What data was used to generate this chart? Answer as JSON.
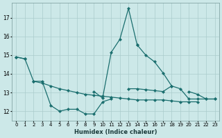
{
  "xlabel": "Humidex (Indice chaleur)",
  "bg_color": "#cce8e8",
  "line_color": "#1a6e6e",
  "grid_color": "#aacccc",
  "ylim": [
    11.5,
    17.8
  ],
  "yticks": [
    12,
    13,
    14,
    15,
    16,
    17
  ],
  "xlim": [
    -0.5,
    23.5
  ],
  "series": [
    [
      14.9,
      14.8,
      null,
      null,
      null,
      null,
      null,
      null,
      null,
      null,
      null,
      null,
      null,
      null,
      null,
      null,
      null,
      null,
      null,
      null,
      null,
      null,
      null,
      null
    ],
    [
      null,
      null,
      13.6,
      13.6,
      12.3,
      12.0,
      12.1,
      12.1,
      11.85,
      11.85,
      12.5,
      12.65,
      null,
      null,
      null,
      null,
      null,
      null,
      null,
      null,
      null,
      null,
      null,
      null
    ],
    [
      null,
      null,
      null,
      null,
      null,
      null,
      null,
      null,
      null,
      13.05,
      12.7,
      15.15,
      15.85,
      17.5,
      15.55,
      null,
      null,
      null,
      null,
      null,
      null,
      null,
      null,
      null
    ],
    [
      null,
      null,
      null,
      null,
      null,
      null,
      null,
      null,
      null,
      null,
      null,
      null,
      null,
      null,
      15.55,
      15.0,
      14.65,
      14.05,
      13.35,
      null,
      null,
      null,
      null,
      null
    ],
    [
      14.9,
      14.8,
      13.6,
      13.5,
      13.35,
      13.2,
      13.1,
      13.0,
      12.9,
      12.85,
      12.8,
      12.75,
      12.7,
      12.65,
      12.6,
      12.6,
      12.6,
      12.6,
      12.55,
      12.5,
      12.5,
      12.5,
      null,
      null
    ],
    [
      null,
      null,
      null,
      null,
      null,
      null,
      null,
      null,
      null,
      null,
      null,
      null,
      null,
      13.2,
      13.2,
      13.15,
      13.1,
      13.05,
      13.35,
      13.2,
      12.65,
      12.65,
      12.65,
      12.65
    ],
    [
      null,
      null,
      null,
      null,
      null,
      null,
      null,
      null,
      null,
      null,
      null,
      null,
      null,
      null,
      null,
      null,
      null,
      null,
      null,
      null,
      13.05,
      12.9,
      12.65,
      12.65
    ]
  ]
}
